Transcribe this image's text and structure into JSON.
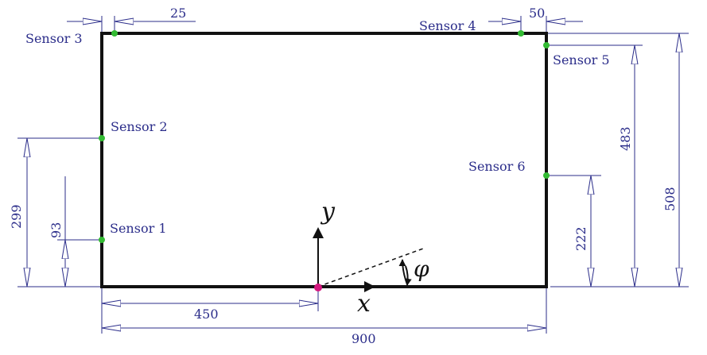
{
  "sensors": {
    "s1": "Sensor 1",
    "s2": "Sensor 2",
    "s3": "Sensor 3",
    "s4": "Sensor 4",
    "s5": "Sensor 5",
    "s6": "Sensor 6"
  },
  "dimensions": {
    "bottom_half": "450",
    "bottom_full": "900",
    "top_left_offset": "25",
    "top_right_offset": "50",
    "left_sensor1": "93",
    "left_sensor2": "299",
    "right_sensor6": "222",
    "right_sensor5": "483",
    "right_total": "508"
  },
  "axes": {
    "x": "x",
    "y": "y",
    "angle": "φ"
  },
  "colors": {
    "frame": "#111111",
    "dimension": "#2b2d8a",
    "sensor": "#33bb33",
    "origin": "#d4187f"
  }
}
